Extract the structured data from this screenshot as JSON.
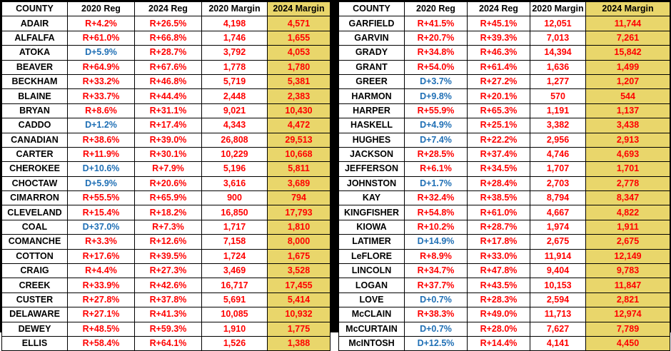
{
  "colors": {
    "republican": "#ff0000",
    "democrat": "#1f6fb5",
    "highlight": "#e9d66b"
  },
  "headers": [
    "COUNTY",
    "2020 Reg",
    "2024 Reg",
    "2020 Margin",
    "2024 Margin"
  ],
  "left_rows": [
    {
      "county": "ADAIR",
      "reg2020": "R+4.2%",
      "reg2024": "R+26.5%",
      "m2020": "4,198",
      "m2024": "4,571"
    },
    {
      "county": "ALFALFA",
      "reg2020": "R+61.0%",
      "reg2024": "R+66.8%",
      "m2020": "1,746",
      "m2024": "1,655"
    },
    {
      "county": "ATOKA",
      "reg2020": "D+5.9%",
      "reg2024": "R+28.7%",
      "m2020": "3,792",
      "m2024": "4,053"
    },
    {
      "county": "BEAVER",
      "reg2020": "R+64.9%",
      "reg2024": "R+67.6%",
      "m2020": "1,778",
      "m2024": "1,780"
    },
    {
      "county": "BECKHAM",
      "reg2020": "R+33.2%",
      "reg2024": "R+46.8%",
      "m2020": "5,719",
      "m2024": "5,381"
    },
    {
      "county": "BLAINE",
      "reg2020": "R+33.7%",
      "reg2024": "R+44.4%",
      "m2020": "2,448",
      "m2024": "2,383"
    },
    {
      "county": "BRYAN",
      "reg2020": "R+8.6%",
      "reg2024": "R+31.1%",
      "m2020": "9,021",
      "m2024": "10,430"
    },
    {
      "county": "CADDO",
      "reg2020": "D+1.2%",
      "reg2024": "R+17.4%",
      "m2020": "4,343",
      "m2024": "4,472"
    },
    {
      "county": "CANADIAN",
      "reg2020": "R+38.6%",
      "reg2024": "R+39.0%",
      "m2020": "26,808",
      "m2024": "29,513"
    },
    {
      "county": "CARTER",
      "reg2020": "R+11.9%",
      "reg2024": "R+30.1%",
      "m2020": "10,229",
      "m2024": "10,668"
    },
    {
      "county": "CHEROKEE",
      "reg2020": "D+10.6%",
      "reg2024": "R+7.9%",
      "m2020": "5,196",
      "m2024": "5,811"
    },
    {
      "county": "CHOCTAW",
      "reg2020": "D+5.9%",
      "reg2024": "R+20.6%",
      "m2020": "3,616",
      "m2024": "3,689"
    },
    {
      "county": "CIMARRON",
      "reg2020": "R+55.5%",
      "reg2024": "R+65.9%",
      "m2020": "900",
      "m2024": "794"
    },
    {
      "county": "CLEVELAND",
      "reg2020": "R+15.4%",
      "reg2024": "R+18.2%",
      "m2020": "16,850",
      "m2024": "17,793"
    },
    {
      "county": "COAL",
      "reg2020": "D+37.0%",
      "reg2024": "R+7.3%",
      "m2020": "1,717",
      "m2024": "1,810"
    },
    {
      "county": "COMANCHE",
      "reg2020": "R+3.3%",
      "reg2024": "R+12.6%",
      "m2020": "7,158",
      "m2024": "8,000"
    },
    {
      "county": "COTTON",
      "reg2020": "R+17.6%",
      "reg2024": "R+39.5%",
      "m2020": "1,724",
      "m2024": "1,675"
    },
    {
      "county": "CRAIG",
      "reg2020": "R+4.4%",
      "reg2024": "R+27.3%",
      "m2020": "3,469",
      "m2024": "3,528"
    },
    {
      "county": "CREEK",
      "reg2020": "R+33.9%",
      "reg2024": "R+42.6%",
      "m2020": "16,717",
      "m2024": "17,455"
    },
    {
      "county": "CUSTER",
      "reg2020": "R+27.8%",
      "reg2024": "R+37.8%",
      "m2020": "5,691",
      "m2024": "5,414"
    },
    {
      "county": "DELAWARE",
      "reg2020": "R+27.1%",
      "reg2024": "R+41.3%",
      "m2020": "10,085",
      "m2024": "10,932"
    },
    {
      "county": "DEWEY",
      "reg2020": "R+48.5%",
      "reg2024": "R+59.3%",
      "m2020": "1,910",
      "m2024": "1,775"
    },
    {
      "county": "ELLIS",
      "reg2020": "R+58.4%",
      "reg2024": "R+64.1%",
      "m2020": "1,526",
      "m2024": "1,388"
    }
  ],
  "right_rows": [
    {
      "county": "GARFIELD",
      "reg2020": "R+41.5%",
      "reg2024": "R+45.1%",
      "m2020": "12,051",
      "m2024": "11,744"
    },
    {
      "county": "GARVIN",
      "reg2020": "R+20.7%",
      "reg2024": "R+39.3%",
      "m2020": "7,013",
      "m2024": "7,261"
    },
    {
      "county": "GRADY",
      "reg2020": "R+34.8%",
      "reg2024": "R+46.3%",
      "m2020": "14,394",
      "m2024": "15,842"
    },
    {
      "county": "GRANT",
      "reg2020": "R+54.0%",
      "reg2024": "R+61.4%",
      "m2020": "1,636",
      "m2024": "1,499"
    },
    {
      "county": "GREER",
      "reg2020": "D+3.7%",
      "reg2024": "R+27.2%",
      "m2020": "1,277",
      "m2024": "1,207"
    },
    {
      "county": "HARMON",
      "reg2020": "D+9.8%",
      "reg2024": "R+20.1%",
      "m2020": "570",
      "m2024": "544"
    },
    {
      "county": "HARPER",
      "reg2020": "R+55.9%",
      "reg2024": "R+65.3%",
      "m2020": "1,191",
      "m2024": "1,137"
    },
    {
      "county": "HASKELL",
      "reg2020": "D+4.9%",
      "reg2024": "R+25.1%",
      "m2020": "3,382",
      "m2024": "3,438"
    },
    {
      "county": "HUGHES",
      "reg2020": "D+7.4%",
      "reg2024": "R+22.2%",
      "m2020": "2,956",
      "m2024": "2,913"
    },
    {
      "county": "JACKSON",
      "reg2020": "R+28.5%",
      "reg2024": "R+37.4%",
      "m2020": "4,746",
      "m2024": "4,693"
    },
    {
      "county": "JEFFERSON",
      "reg2020": "R+6.1%",
      "reg2024": "R+34.5%",
      "m2020": "1,707",
      "m2024": "1,701"
    },
    {
      "county": "JOHNSTON",
      "reg2020": "D+1.7%",
      "reg2024": "R+28.4%",
      "m2020": "2,703",
      "m2024": "2,778"
    },
    {
      "county": "KAY",
      "reg2020": "R+32.4%",
      "reg2024": "R+38.5%",
      "m2020": "8,794",
      "m2024": "8,347"
    },
    {
      "county": "KINGFISHER",
      "reg2020": "R+54.8%",
      "reg2024": "R+61.0%",
      "m2020": "4,667",
      "m2024": "4,822"
    },
    {
      "county": "KIOWA",
      "reg2020": "R+10.2%",
      "reg2024": "R+28.7%",
      "m2020": "1,974",
      "m2024": "1,911"
    },
    {
      "county": "LATIMER",
      "reg2020": "D+14.9%",
      "reg2024": "R+17.8%",
      "m2020": "2,675",
      "m2024": "2,675"
    },
    {
      "county": "LeFLORE",
      "reg2020": "R+8.9%",
      "reg2024": "R+33.0%",
      "m2020": "11,914",
      "m2024": "12,149"
    },
    {
      "county": "LINCOLN",
      "reg2020": "R+34.7%",
      "reg2024": "R+47.8%",
      "m2020": "9,404",
      "m2024": "9,783"
    },
    {
      "county": "LOGAN",
      "reg2020": "R+37.7%",
      "reg2024": "R+43.5%",
      "m2020": "10,153",
      "m2024": "11,847"
    },
    {
      "county": "LOVE",
      "reg2020": "D+0.7%",
      "reg2024": "R+28.3%",
      "m2020": "2,594",
      "m2024": "2,821"
    },
    {
      "county": "McCLAIN",
      "reg2020": "R+38.3%",
      "reg2024": "R+49.0%",
      "m2020": "11,713",
      "m2024": "12,974"
    },
    {
      "county": "McCURTAIN",
      "reg2020": "D+0.7%",
      "reg2024": "R+28.0%",
      "m2020": "7,627",
      "m2024": "7,789"
    },
    {
      "county": "McINTOSH",
      "reg2020": "D+12.5%",
      "reg2024": "R+14.4%",
      "m2020": "4,141",
      "m2024": "4,450"
    }
  ]
}
